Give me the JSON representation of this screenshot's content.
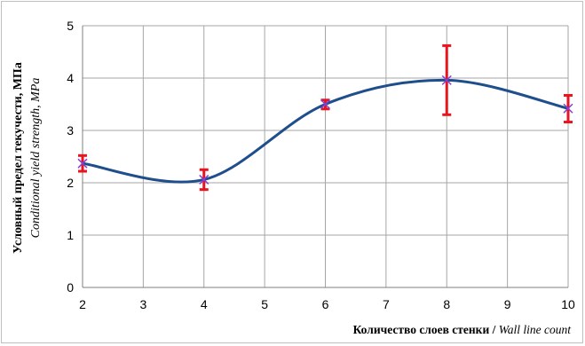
{
  "chart_data": {
    "type": "line",
    "x": [
      2,
      4,
      6,
      8,
      10
    ],
    "series": [
      {
        "values": [
          2.37,
          2.06,
          3.5,
          3.96,
          3.42
        ],
        "error_low": [
          2.22,
          1.87,
          3.41,
          3.3,
          3.16
        ],
        "error_high": [
          2.52,
          2.25,
          3.58,
          4.62,
          3.67
        ],
        "line_color": "#1f4e8c",
        "marker_color": "#8a3fd1",
        "error_color": "#e8141f",
        "smooth": true,
        "marker": "x"
      }
    ],
    "xlim": [
      2,
      10
    ],
    "ylim": [
      0,
      5
    ],
    "xticks": [
      2,
      3,
      4,
      5,
      6,
      7,
      8,
      9,
      10
    ],
    "yticks": [
      0,
      1,
      2,
      3,
      4,
      5
    ],
    "grid": true,
    "ylabel_bold": "Условный предел текучести, МПа",
    "ylabel_italic": "Conditional yield strength, MPa",
    "xlabel_bold": "Количество слоев стенки / ",
    "xlabel_italic": "Wall line count"
  }
}
